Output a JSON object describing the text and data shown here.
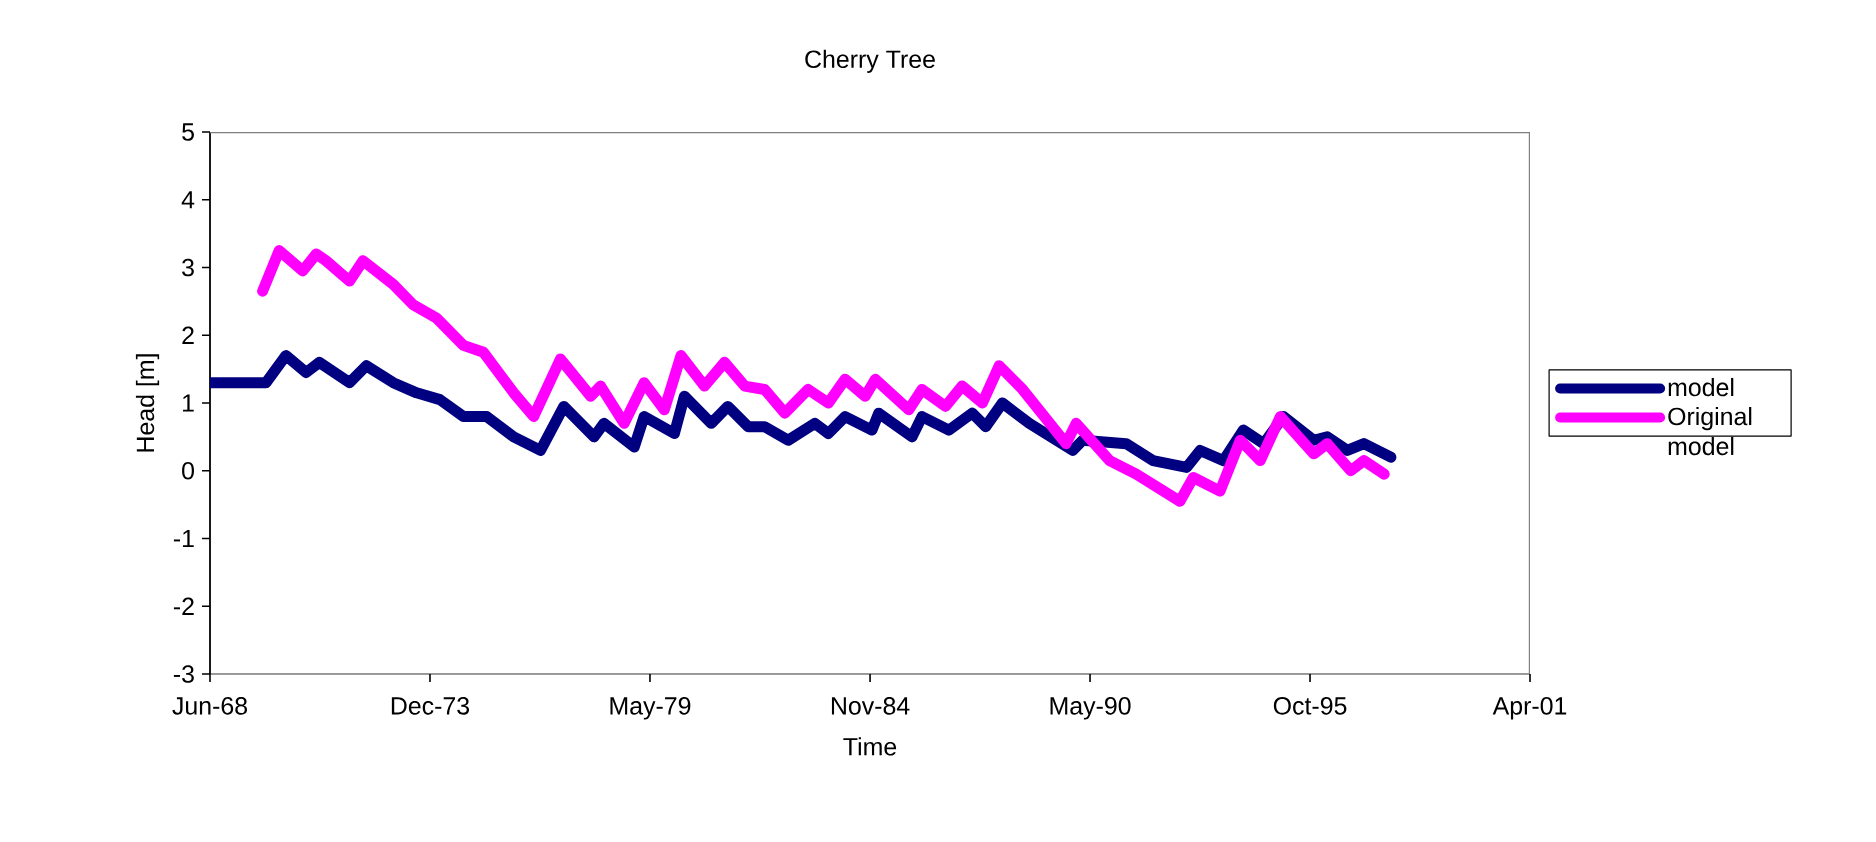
{
  "chart_data": {
    "type": "line",
    "title": "Cherry Tree",
    "xlabel": "Time",
    "ylabel": "Head [m]",
    "xlim": [
      "1968-06-10",
      "2001-04-19"
    ],
    "xticks": [
      {
        "value": "1968-06-10",
        "label": "Jun-68"
      },
      {
        "value": "1973-12-01",
        "label": "Dec-73"
      },
      {
        "value": "1979-05-24",
        "label": "May-79"
      },
      {
        "value": "1984-11-14",
        "label": "Nov-84"
      },
      {
        "value": "1990-05-07",
        "label": "May-90"
      },
      {
        "value": "1995-10-28",
        "label": "Oct-95"
      },
      {
        "value": "2001-04-19",
        "label": "Apr-01"
      }
    ],
    "ylim": [
      -3,
      5
    ],
    "yticks": [
      -3,
      -2,
      -1,
      0,
      1,
      2,
      3,
      4,
      5
    ],
    "grid": false,
    "legend": "right",
    "marker": "none",
    "line_style": "solid",
    "series": [
      {
        "name": "model",
        "color": "#000080",
        "x": [
          "1968-06-10",
          "1969-11",
          "1970-05",
          "1970-11",
          "1971-03",
          "1971-12",
          "1972-05",
          "1973-01",
          "1973-08",
          "1974-03",
          "1974-10",
          "1975-05",
          "1976-01",
          "1976-09",
          "1977-04",
          "1978-01",
          "1978-04",
          "1979-01",
          "1979-04",
          "1980-01",
          "1980-04",
          "1980-12",
          "1981-05",
          "1981-11",
          "1982-04",
          "1982-11",
          "1983-07",
          "1983-11",
          "1984-04",
          "1984-12",
          "1985-02",
          "1985-12",
          "1986-03",
          "1986-11",
          "1987-06",
          "1987-10",
          "1988-03",
          "1988-11",
          "1989-12",
          "1990-03",
          "1991-04",
          "1991-12",
          "1992-10",
          "1993-02",
          "1993-09",
          "1994-03",
          "1994-09",
          "1995-03",
          "1995-12",
          "1996-04",
          "1996-10",
          "1997-03",
          "1997-11"
        ],
        "values": [
          1.3,
          1.3,
          1.7,
          1.45,
          1.6,
          1.3,
          1.55,
          1.3,
          1.15,
          1.05,
          0.8,
          0.8,
          0.5,
          0.3,
          0.95,
          0.5,
          0.7,
          0.35,
          0.8,
          0.55,
          1.1,
          0.7,
          0.95,
          0.65,
          0.65,
          0.45,
          0.7,
          0.55,
          0.8,
          0.6,
          0.85,
          0.5,
          0.8,
          0.6,
          0.85,
          0.65,
          1.0,
          0.7,
          0.3,
          0.45,
          0.4,
          0.15,
          0.05,
          0.3,
          0.15,
          0.6,
          0.4,
          0.8,
          0.45,
          0.5,
          0.3,
          0.4,
          0.2
        ]
      },
      {
        "name": "Original model",
        "color": "#ff00ff",
        "x": [
          "1969-10",
          "1970-03",
          "1970-10",
          "1971-02",
          "1971-05",
          "1971-12",
          "1972-04",
          "1973-01",
          "1973-07",
          "1974-02",
          "1974-10",
          "1975-04",
          "1976-01",
          "1976-07",
          "1977-03",
          "1977-12",
          "1978-03",
          "1978-10",
          "1979-04",
          "1979-10",
          "1980-03",
          "1980-10",
          "1981-04",
          "1981-10",
          "1982-04",
          "1982-10",
          "1983-05",
          "1983-11",
          "1984-04",
          "1984-10",
          "1985-01",
          "1985-11",
          "1986-03",
          "1986-10",
          "1987-03",
          "1987-09",
          "1988-02",
          "1988-09",
          "1989-10",
          "1990-01",
          "1990-11",
          "1991-07",
          "1992-08",
          "1992-12",
          "1993-08",
          "1994-02",
          "1994-08",
          "1995-02",
          "1995-12",
          "1996-04",
          "1996-11",
          "1997-03",
          "1997-09"
        ],
        "values": [
          2.65,
          3.25,
          2.95,
          3.2,
          3.1,
          2.8,
          3.1,
          2.75,
          2.45,
          2.25,
          1.85,
          1.75,
          1.15,
          0.8,
          1.65,
          1.1,
          1.25,
          0.7,
          1.3,
          0.9,
          1.7,
          1.25,
          1.6,
          1.25,
          1.2,
          0.85,
          1.2,
          1.0,
          1.35,
          1.1,
          1.35,
          0.9,
          1.2,
          0.95,
          1.25,
          1.0,
          1.55,
          1.2,
          0.4,
          0.7,
          0.15,
          -0.05,
          -0.45,
          -0.1,
          -0.3,
          0.45,
          0.15,
          0.8,
          0.25,
          0.4,
          0.0,
          0.15,
          -0.05
        ]
      }
    ]
  }
}
